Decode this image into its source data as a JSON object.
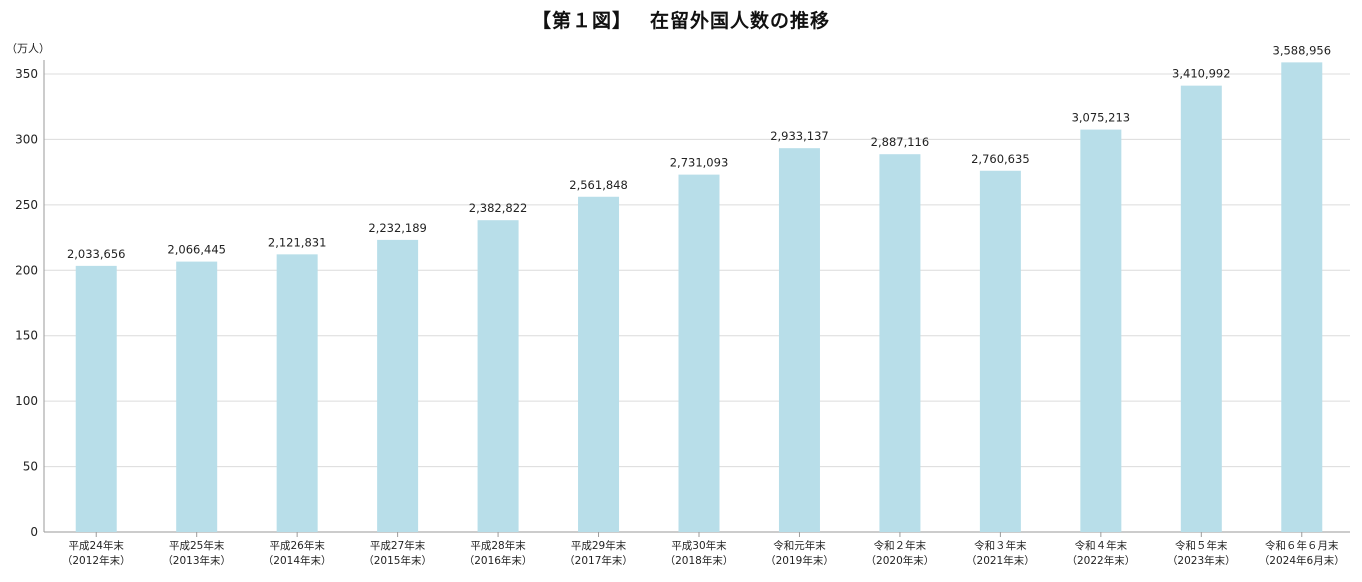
{
  "chart_data": {
    "type": "bar",
    "title": "【第１図】　 在留外国人数の推移",
    "ylabel": "（万人）",
    "xlabel": "",
    "ylim": [
      0,
      350
    ],
    "yticks": [
      0,
      50,
      100,
      150,
      200,
      250,
      300,
      350
    ],
    "grid": true,
    "colors": {
      "bar": "#b8dee9",
      "grid": "#dcdcdc",
      "axis": "#9a9a9a"
    },
    "categories": [
      [
        "平成24年末",
        "（2012年末）"
      ],
      [
        "平成25年末",
        "（2013年末）"
      ],
      [
        "平成26年末",
        "（2014年末）"
      ],
      [
        "平成27年末",
        "（2015年末）"
      ],
      [
        "平成28年末",
        "（2016年末）"
      ],
      [
        "平成29年末",
        "（2017年末）"
      ],
      [
        "平成30年末",
        "（2018年末）"
      ],
      [
        "令和元年末",
        "（2019年末）"
      ],
      [
        "令和２年末",
        "（2020年末）"
      ],
      [
        "令和３年末",
        "（2021年末）"
      ],
      [
        "令和４年末",
        "（2022年末）"
      ],
      [
        "令和５年末",
        "（2023年末）"
      ],
      [
        "令和６年６月末",
        "（2024年6月末）"
      ]
    ],
    "values": [
      2033656,
      2066445,
      2121831,
      2232189,
      2382822,
      2561848,
      2731093,
      2933137,
      2887116,
      2760635,
      3075213,
      3410992,
      3588956
    ],
    "value_labels": [
      "2,033,656",
      "2,066,445",
      "2,121,831",
      "2,232,189",
      "2,382,822",
      "2,561,848",
      "2,731,093",
      "2,933,137",
      "2,887,116",
      "2,760,635",
      "3,075,213",
      "3,410,992",
      "3,588,956"
    ]
  }
}
